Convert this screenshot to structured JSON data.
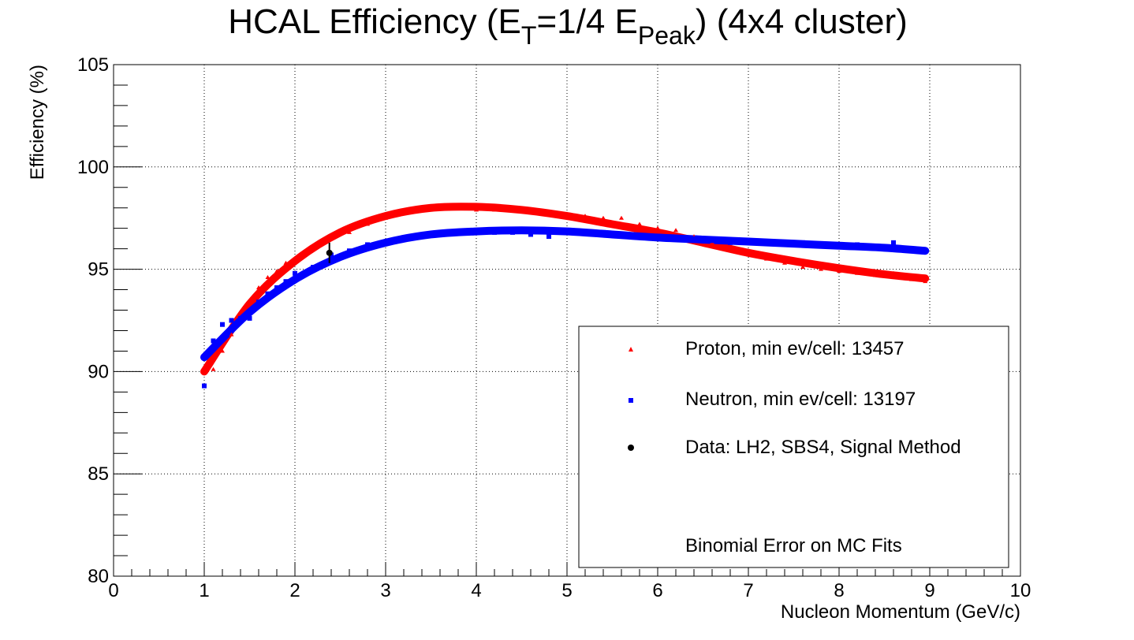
{
  "chart_data": {
    "type": "scatter",
    "title_parts": {
      "t1": "HCAL Efficiency (E",
      "t_sub1": "T",
      "t2": "=1/4 E",
      "t_sub2": "Peak",
      "t3": ") (4x4 cluster)"
    },
    "xlabel": "Nucleon Momentum (GeV/c)",
    "ylabel": "Efficiency (%)",
    "xlim": [
      0,
      10
    ],
    "ylim": [
      80,
      105
    ],
    "x_ticks": [
      "0",
      "1",
      "2",
      "3",
      "4",
      "5",
      "6",
      "7",
      "8",
      "9",
      "10"
    ],
    "y_ticks": [
      "80",
      "85",
      "90",
      "95",
      "100",
      "105"
    ],
    "grid": true,
    "legend_position": "bottom-right",
    "legend": {
      "proton": "Proton, min ev/cell: 13457",
      "neutron": "Neutron, min ev/cell: 13197",
      "data": "Data: LH2, SBS4, Signal Method",
      "note": "Binomial Error on MC Fits"
    },
    "colors": {
      "proton": "#ff0000",
      "neutron": "#0000ff",
      "data": "#000000",
      "grid": "#000000"
    },
    "series": [
      {
        "name": "Proton, min ev/cell: 13457",
        "x": [
          1.0,
          1.1,
          1.2,
          1.3,
          1.4,
          1.5,
          1.6,
          1.7,
          1.8,
          1.9,
          2.0,
          2.2,
          2.4,
          2.6,
          2.8,
          3.0,
          3.2,
          3.4,
          3.6,
          3.8,
          4.0,
          4.2,
          4.4,
          4.6,
          4.8,
          5.0,
          5.2,
          5.4,
          5.6,
          5.8,
          6.0,
          6.2,
          6.4,
          6.6,
          6.8,
          7.0,
          7.2,
          7.4,
          7.6,
          7.8,
          8.0,
          8.2,
          8.4,
          8.6,
          8.8,
          8.95
        ],
        "y": [
          90.0,
          90.1,
          91.0,
          91.8,
          92.6,
          93.4,
          94.1,
          94.6,
          94.9,
          95.3,
          95.5,
          96.0,
          96.5,
          96.8,
          97.2,
          97.5,
          97.8,
          97.9,
          98.0,
          98.0,
          97.9,
          97.9,
          97.9,
          97.8,
          97.8,
          97.7,
          97.6,
          97.5,
          97.5,
          97.2,
          97.0,
          96.9,
          96.6,
          96.3,
          96.0,
          95.7,
          95.5,
          95.3,
          95.1,
          95.0,
          94.9,
          94.8,
          94.7,
          94.8,
          94.5,
          94.4
        ],
        "fit": {
          "x": [
            1.0,
            1.5,
            2.0,
            2.5,
            3.0,
            3.5,
            4.0,
            4.5,
            5.0,
            5.5,
            6.0,
            6.5,
            7.0,
            7.5,
            8.0,
            8.5,
            8.95
          ],
          "y": [
            90.0,
            93.3,
            95.4,
            96.8,
            97.6,
            98.0,
            98.05,
            97.9,
            97.6,
            97.2,
            96.8,
            96.3,
            95.8,
            95.4,
            95.05,
            94.75,
            94.55
          ]
        }
      },
      {
        "name": "Neutron, min ev/cell: 13197",
        "x": [
          1.0,
          1.1,
          1.2,
          1.3,
          1.4,
          1.5,
          1.6,
          1.7,
          1.8,
          1.9,
          2.0,
          2.2,
          2.4,
          2.6,
          2.8,
          3.0,
          3.2,
          3.4,
          3.6,
          3.8,
          4.0,
          4.2,
          4.4,
          4.6,
          4.8,
          5.0,
          5.2,
          5.4,
          5.6,
          5.8,
          6.0,
          6.2,
          6.4,
          6.6,
          6.8,
          7.0,
          7.2,
          7.4,
          7.6,
          7.8,
          8.0,
          8.2,
          8.4,
          8.6,
          8.8,
          8.95
        ],
        "y": [
          89.3,
          91.5,
          92.3,
          92.5,
          92.6,
          92.6,
          93.4,
          93.8,
          94.1,
          94.4,
          94.8,
          95.1,
          95.7,
          95.9,
          96.2,
          96.3,
          96.5,
          96.6,
          96.8,
          96.8,
          96.9,
          96.8,
          96.8,
          96.7,
          96.6,
          96.9,
          96.8,
          96.8,
          96.7,
          96.6,
          96.5,
          96.5,
          96.5,
          96.4,
          96.3,
          96.3,
          96.3,
          96.3,
          96.3,
          96.2,
          96.2,
          96.2,
          96.1,
          96.3,
          96.0,
          95.9
        ],
        "fit": {
          "x": [
            1.0,
            1.5,
            2.0,
            2.5,
            3.0,
            3.5,
            4.0,
            4.5,
            5.0,
            5.5,
            6.0,
            6.5,
            7.0,
            7.5,
            8.0,
            8.5,
            8.95
          ],
          "y": [
            90.7,
            92.9,
            94.5,
            95.6,
            96.3,
            96.7,
            96.85,
            96.9,
            96.85,
            96.7,
            96.55,
            96.45,
            96.35,
            96.25,
            96.15,
            96.05,
            95.9
          ]
        }
      },
      {
        "name": "Data: LH2, SBS4, Signal Method",
        "x": [
          2.38
        ],
        "y": [
          95.8
        ],
        "err": [
          0.5
        ]
      }
    ]
  }
}
